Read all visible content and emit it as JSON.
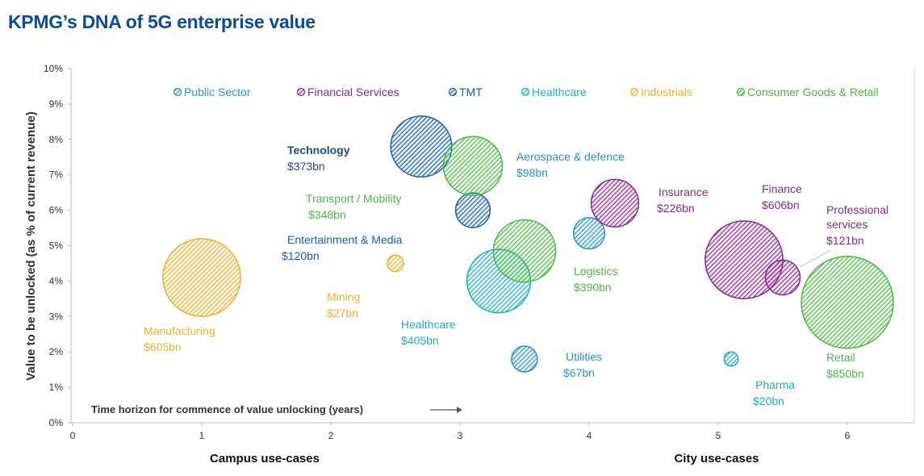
{
  "title": "KPMG’s DNA of 5G enterprise value",
  "chart_data": {
    "type": "bubble",
    "title": "KPMG’s DNA of 5G enterprise value",
    "ylabel": "Value to be unlocked (as % of current revenue)",
    "xlabel_annotation": "Time horizon for commence of value unlocking (years)",
    "x_bottom_labels": {
      "left": "Campus use-cases",
      "right": "City use-cases"
    },
    "xlim": [
      0,
      6.5
    ],
    "ylim": [
      0,
      10
    ],
    "x_ticks": [
      "0",
      "1",
      "2",
      "3",
      "4",
      "5",
      "6"
    ],
    "y_ticks": [
      "0%",
      "1%",
      "2%",
      "3%",
      "4%",
      "5%",
      "6%",
      "7%",
      "8%",
      "9%",
      "10%"
    ],
    "legend_position": "top",
    "legend": [
      {
        "name": "Public Sector",
        "color": "#2b92c9"
      },
      {
        "name": "Financial Services",
        "color": "#8a2a8e"
      },
      {
        "name": "TMT",
        "color": "#1c5ea8"
      },
      {
        "name": "Healthcare",
        "color": "#1fb0b9"
      },
      {
        "name": "Industrials",
        "color": "#ecb22e"
      },
      {
        "name": "Consumer Goods & Retail",
        "color": "#4fb748"
      }
    ],
    "points": [
      {
        "name": "Manufacturing",
        "value": "$605bn",
        "x": 1.0,
        "y": 4.1,
        "bn": 605,
        "sector": "Industrials"
      },
      {
        "name": "Mining",
        "value": "$27bn",
        "x": 2.5,
        "y": 4.5,
        "bn": 27,
        "sector": "Industrials"
      },
      {
        "name": "Technology",
        "value": "$373bn",
        "x": 2.7,
        "y": 7.8,
        "bn": 373,
        "sector": "TMT"
      },
      {
        "name": "Entertainment & Media",
        "value": "$120bn",
        "x": 3.1,
        "y": 6.0,
        "bn": 120,
        "sector": "TMT"
      },
      {
        "name": "Transport / Mobility",
        "value": "$348bn",
        "x": 3.1,
        "y": 7.25,
        "bn": 348,
        "sector": "Consumer Goods & Retail"
      },
      {
        "name": "Aerospace & defence",
        "value": "$98bn",
        "x": 4.0,
        "y": 5.35,
        "bn": 98,
        "sector": "Public Sector"
      },
      {
        "name": "Healthcare",
        "value": "$405bn",
        "x": 3.3,
        "y": 4.0,
        "bn": 405,
        "sector": "Healthcare"
      },
      {
        "name": "Logistics",
        "value": "$390bn",
        "x": 3.5,
        "y": 4.85,
        "bn": 390,
        "sector": "Consumer Goods & Retail"
      },
      {
        "name": "Utilities",
        "value": "$67bn",
        "x": 3.5,
        "y": 1.8,
        "bn": 67,
        "sector": "Public Sector"
      },
      {
        "name": "Insurance",
        "value": "$226bn",
        "x": 4.2,
        "y": 6.2,
        "bn": 226,
        "sector": "Financial Services"
      },
      {
        "name": "Finance",
        "value": "$606bn",
        "x": 5.2,
        "y": 4.6,
        "bn": 606,
        "sector": "Financial Services"
      },
      {
        "name": "Professional services",
        "value": "$121bn",
        "x": 5.5,
        "y": 4.1,
        "bn": 121,
        "sector": "Financial Services"
      },
      {
        "name": "Pharma",
        "value": "$20bn",
        "x": 5.1,
        "y": 1.8,
        "bn": 20,
        "sector": "Healthcare"
      },
      {
        "name": "Retail",
        "value": "$850bn",
        "x": 6.0,
        "y": 3.4,
        "bn": 850,
        "sector": "Consumer Goods & Retail"
      }
    ]
  }
}
